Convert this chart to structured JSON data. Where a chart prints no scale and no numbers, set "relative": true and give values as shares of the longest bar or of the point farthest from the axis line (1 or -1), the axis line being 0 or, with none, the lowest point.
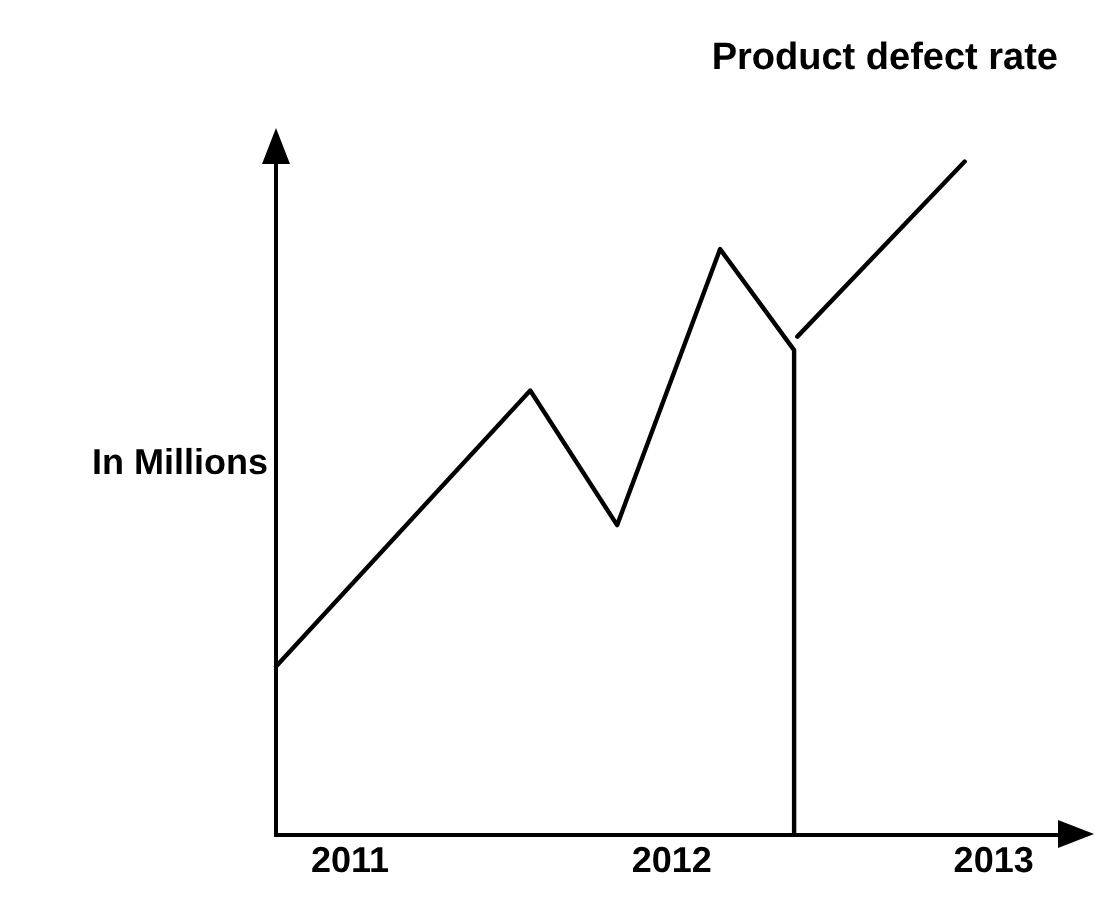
{
  "chart_data": {
    "type": "line",
    "title": "Product defect rate",
    "ylabel": "In Millions",
    "relative": true,
    "xlim": [
      2010.77,
      2013.2
    ],
    "xticks": [
      2011,
      2012,
      2013
    ],
    "series": [
      {
        "color": "#000000",
        "x": [
          2010.77,
          2011.56,
          2011.83,
          2012.15,
          2012.38,
          2012.38,
          2012.385,
          2012.39,
          2012.91
        ],
        "values": [
          0.25,
          0.66,
          0.46,
          0.87,
          0.72,
          0,
          null,
          0.74,
          1
        ]
      }
    ],
    "grid": false,
    "legend": false,
    "marker": "none",
    "line_style": "solid"
  }
}
